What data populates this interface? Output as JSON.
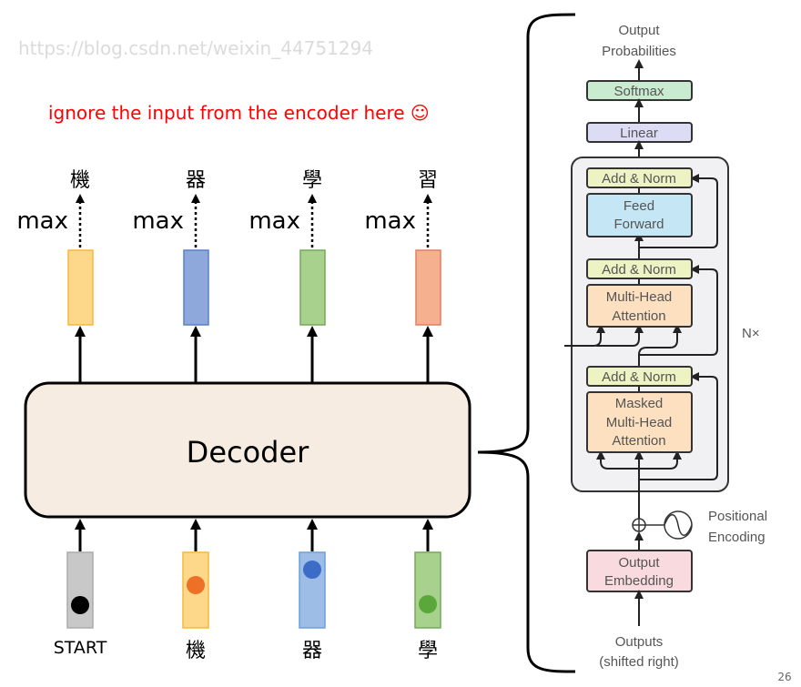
{
  "note": "ignore the input from the encoder here ☺",
  "outputs": [
    {
      "char": "機",
      "op": "max",
      "color": "#fdd88a",
      "stroke": "#f5b83a"
    },
    {
      "char": "器",
      "op": "max",
      "color": "#8fa8dc",
      "stroke": "#5a7fc8"
    },
    {
      "char": "學",
      "op": "max",
      "color": "#a9d18e",
      "stroke": "#74a95a"
    },
    {
      "char": "習",
      "op": "max",
      "color": "#f4b08f",
      "stroke": "#e08060"
    }
  ],
  "decoder_label": "Decoder",
  "inputs": [
    {
      "label": "START",
      "color": "#c8c8c8",
      "stroke": "#aaaaaa",
      "dot": "#000000"
    },
    {
      "label": "機",
      "color": "#fdd88a",
      "stroke": "#f5b83a",
      "dot": "#ee7026"
    },
    {
      "label": "器",
      "color": "#9dbde6",
      "stroke": "#6e9fd6",
      "dot": "#3c6cc8"
    },
    {
      "label": "學",
      "color": "#a9d18e",
      "stroke": "#74a95a",
      "dot": "#5aa83a"
    }
  ],
  "transformer": {
    "output_probabilities": [
      "Output",
      "Probabilities"
    ],
    "softmax": "Softmax",
    "linear": "Linear",
    "add_norm": "Add & Norm",
    "feed_forward": [
      "Feed",
      "Forward"
    ],
    "multi_head": [
      "Multi-Head",
      "Attention"
    ],
    "masked": [
      "Masked",
      "Multi-Head",
      "Attention"
    ],
    "nx": "N×",
    "positional_encoding": [
      "Positional",
      "Encoding"
    ],
    "output_embedding": [
      "Output",
      "Embedding"
    ],
    "outputs": [
      "Outputs",
      "(shifted right)"
    ]
  },
  "page_number": "26",
  "watermark": "https://blog.csdn.net/weixin_44751294"
}
